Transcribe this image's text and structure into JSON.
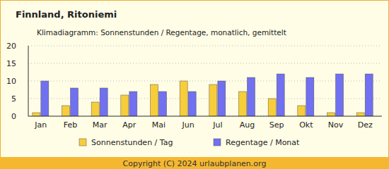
{
  "chart_data": {
    "type": "bar",
    "title": "Finnland, Ritoniemi",
    "subtitle": "Klimadiagramm: Sonnenstunden / Regentage, monatlich, gemittelt",
    "categories": [
      "Jan",
      "Feb",
      "Mar",
      "Apr",
      "Mai",
      "Jun",
      "Jul",
      "Aug",
      "Sep",
      "Okt",
      "Nov",
      "Dez"
    ],
    "series": [
      {
        "name": "Sonnenstunden / Tag",
        "color": "#f8cd3a",
        "values": [
          1,
          3,
          4,
          6,
          9,
          10,
          9,
          7,
          5,
          3,
          1,
          1
        ]
      },
      {
        "name": "Regentage / Monat",
        "color": "#7070f0",
        "values": [
          10,
          8,
          8,
          7,
          7,
          7,
          10,
          11,
          12,
          11,
          12,
          12
        ]
      }
    ],
    "ylim": [
      0,
      20
    ],
    "yticks": [
      0,
      5,
      10,
      15,
      20
    ],
    "grid": true,
    "legend": "bottom"
  },
  "footer": "Copyright (C) 2024 urlaubplanen.org"
}
